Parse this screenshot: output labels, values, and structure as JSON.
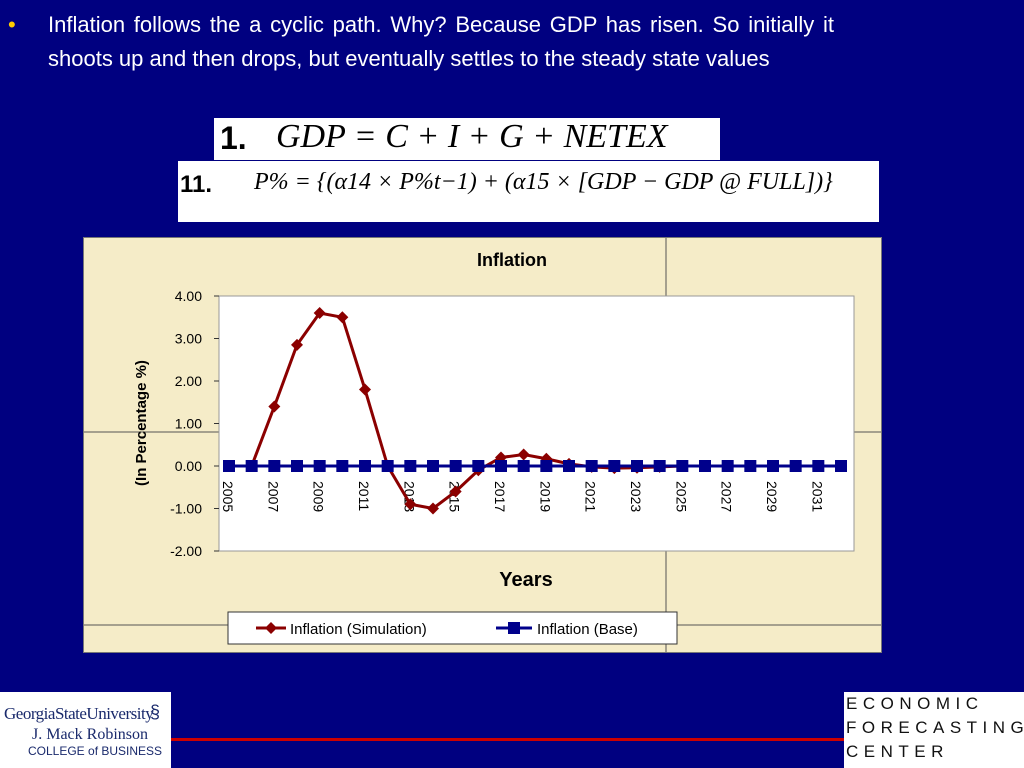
{
  "slide": {
    "bullet_char": "•",
    "bullet_text": "Inflation follows the a cyclic path. Why? Because GDP has risen. So initially it shoots up and then drops, but eventually settles to the steady state values"
  },
  "equations": [
    {
      "number": "1.",
      "formula": "GDP = C + I + G + NETEX"
    },
    {
      "number": "11.",
      "formula": "P% = {(α14 × P%t−1) + (α15 × [GDP − GDP @ FULL])}"
    }
  ],
  "chart_data": {
    "type": "line",
    "title": "Inflation",
    "xlabel": "Years",
    "ylabel": "(In Percentage %)",
    "ylim": [
      -2,
      4
    ],
    "yticks": [
      "4.00",
      "3.00",
      "2.00",
      "1.00",
      "0.00",
      "-1.00",
      "-2.00"
    ],
    "ytick_values": [
      4,
      3,
      2,
      1,
      0,
      -1,
      -2
    ],
    "x": [
      2005,
      2006,
      2007,
      2008,
      2009,
      2010,
      2011,
      2012,
      2013,
      2014,
      2015,
      2016,
      2017,
      2018,
      2019,
      2020,
      2021,
      2022,
      2023,
      2024,
      2025,
      2026,
      2027,
      2028,
      2029,
      2030,
      2031,
      2032
    ],
    "xtick_labels": [
      "2005",
      "2007",
      "2009",
      "2011",
      "2013",
      "2015",
      "2017",
      "2019",
      "2021",
      "2023",
      "2025",
      "2027",
      "2029",
      "2031"
    ],
    "xtick_values": [
      2005,
      2007,
      2009,
      2011,
      2013,
      2015,
      2017,
      2019,
      2021,
      2023,
      2025,
      2027,
      2029,
      2031
    ],
    "grid": false,
    "legend_position": "bottom",
    "series": [
      {
        "name": "Inflation (Simulation)",
        "color": "#8b0000",
        "marker": "diamond",
        "values": [
          0,
          0,
          1.4,
          2.85,
          3.6,
          3.5,
          1.8,
          0,
          -0.9,
          -1.0,
          -0.6,
          -0.1,
          0.2,
          0.27,
          0.17,
          0.05,
          -0.02,
          -0.05,
          -0.04,
          -0.02,
          0,
          0,
          0,
          0,
          0,
          0,
          0,
          0
        ]
      },
      {
        "name": "Inflation (Base)",
        "color": "#00008b",
        "marker": "square",
        "values": [
          0,
          0,
          0,
          0,
          0,
          0,
          0,
          0,
          0,
          0,
          0,
          0,
          0,
          0,
          0,
          0,
          0,
          0,
          0,
          0,
          0,
          0,
          0,
          0,
          0,
          0,
          0,
          0
        ]
      }
    ]
  },
  "logos": {
    "gsu_name": "GeorgiaStateUniversity",
    "gsu_school": "J. Mack Robinson",
    "gsu_college": "COLLEGE of BUSINESS",
    "efc_lines": [
      "ECONOMIC",
      "FORECASTING",
      "CENTER"
    ]
  },
  "colors": {
    "background": "#000080",
    "bullet": "#ffcc00",
    "accent_line": "#cc0000"
  }
}
